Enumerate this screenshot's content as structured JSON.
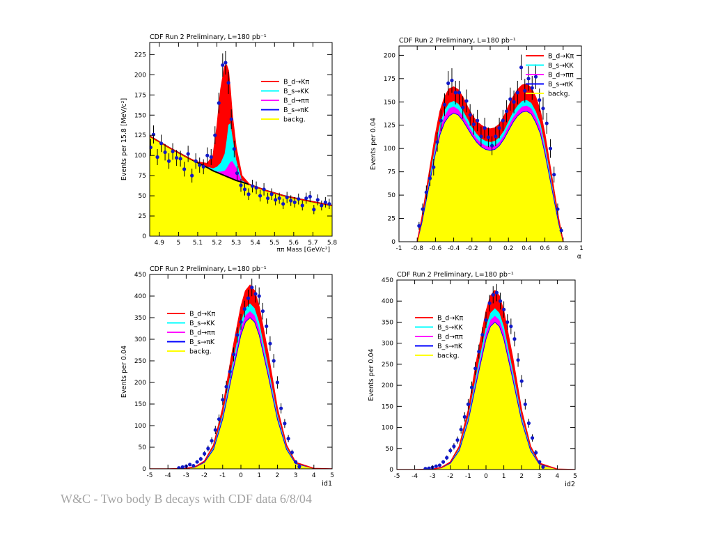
{
  "footer": "W&C - Two body B decays with CDF data 6/8/04",
  "colors": {
    "Bd_Kpi": "#ff0000",
    "Bs_KK": "#00ffff",
    "Bd_pipi": "#ff00ff",
    "Bs_piK": "#0000ff",
    "backg": "#ffff00",
    "points": "#1018c8",
    "frame": "#000000"
  },
  "legend_labels": [
    "B_d→Kπ",
    "B_s→KK",
    "B_d→ππ",
    "B_s→πK",
    "backg."
  ],
  "chart_data": [
    {
      "id": "mass",
      "type": "area",
      "title": "CDF Run 2 Preliminary, L=180 pb⁻¹",
      "xlabel": "ππ Mass [GeV/c²]",
      "ylabel": "Events per 15.8 [MeV/c²]",
      "xlim": [
        4.85,
        5.8
      ],
      "ylim": [
        0,
        240
      ],
      "xticks": [
        "4.9",
        "5",
        "5.1",
        "5.2",
        "5.3",
        "5.4",
        "5.5",
        "5.6",
        "5.7",
        "5.8"
      ],
      "yticks": [
        "0",
        "25",
        "50",
        "75",
        "100",
        "125",
        "150",
        "175",
        "200",
        "225"
      ],
      "legend_position": "top-right",
      "x": [
        4.85,
        4.95,
        5.05,
        5.1,
        5.15,
        5.18,
        5.2,
        5.22,
        5.24,
        5.25,
        5.26,
        5.27,
        5.28,
        5.3,
        5.33,
        5.37,
        5.45,
        5.55,
        5.65,
        5.8
      ],
      "series": [
        {
          "name": "backg.",
          "values": [
            124,
            110,
            97,
            91,
            85,
            81,
            79,
            77,
            75,
            74,
            73,
            72,
            71,
            69,
            67,
            64,
            57,
            50,
            45,
            38
          ]
        },
        {
          "name": "B_d→Kπ",
          "values": [
            124,
            110,
            97,
            92,
            90,
            100,
            135,
            182,
            210,
            212,
            205,
            180,
            150,
            110,
            75,
            64,
            57,
            50,
            45,
            38
          ]
        },
        {
          "name": "B_s→KK",
          "values": [
            124,
            110,
            97,
            91,
            86,
            84,
            86,
            91,
            102,
            118,
            138,
            140,
            125,
            95,
            69,
            64,
            57,
            50,
            45,
            38
          ]
        },
        {
          "name": "B_d→ππ",
          "values": [
            124,
            110,
            97,
            91,
            85,
            81,
            80,
            80,
            81,
            84,
            88,
            92,
            93,
            85,
            68,
            64,
            57,
            50,
            45,
            38
          ]
        }
      ],
      "points": {
        "x": [
          4.855,
          4.87,
          4.89,
          4.91,
          4.93,
          4.95,
          4.97,
          4.99,
          5.01,
          5.03,
          5.05,
          5.07,
          5.09,
          5.11,
          5.13,
          5.15,
          5.17,
          5.19,
          5.21,
          5.23,
          5.245,
          5.26,
          5.275,
          5.29,
          5.305,
          5.325,
          5.345,
          5.365,
          5.385,
          5.405,
          5.425,
          5.445,
          5.465,
          5.485,
          5.505,
          5.525,
          5.545,
          5.565,
          5.585,
          5.605,
          5.625,
          5.645,
          5.665,
          5.685,
          5.705,
          5.725,
          5.745,
          5.765,
          5.785
        ],
        "y": [
          110,
          126,
          98,
          115,
          104,
          93,
          105,
          97,
          96,
          83,
          102,
          75,
          93,
          88,
          86,
          100,
          98,
          125,
          165,
          212,
          215,
          190,
          145,
          108,
          78,
          63,
          58,
          52,
          62,
          60,
          50,
          58,
          47,
          52,
          45,
          47,
          40,
          48,
          44,
          42,
          46,
          38,
          47,
          49,
          33,
          45,
          38,
          42,
          40
        ]
      }
    },
    {
      "id": "alpha",
      "type": "area",
      "title": "CDF Run 2 Preliminary, L=180 pb⁻¹",
      "xlabel": "α",
      "ylabel": "Events per 0.04",
      "xlim": [
        -1,
        1
      ],
      "ylim": [
        0,
        210
      ],
      "xticks": [
        "-1",
        "-0.8",
        "-0.6",
        "-0.4",
        "-0.2",
        "0",
        "0.2",
        "0.4",
        "0.6",
        "0.8",
        "1"
      ],
      "yticks": [
        "0",
        "25",
        "50",
        "75",
        "100",
        "125",
        "150",
        "175",
        "200"
      ],
      "legend_position": "top-right",
      "x": [
        -0.8,
        -0.75,
        -0.7,
        -0.65,
        -0.6,
        -0.55,
        -0.5,
        -0.45,
        -0.4,
        -0.35,
        -0.3,
        -0.25,
        -0.2,
        -0.15,
        -0.1,
        -0.05,
        0,
        0.05,
        0.1,
        0.15,
        0.2,
        0.25,
        0.3,
        0.35,
        0.4,
        0.45,
        0.5,
        0.55,
        0.6,
        0.65,
        0.7,
        0.75,
        0.8
      ],
      "series": [
        {
          "name": "backg.",
          "values": [
            0,
            20,
            45,
            70,
            95,
            115,
            128,
            135,
            138,
            136,
            130,
            122,
            114,
            107,
            102,
            99,
            98,
            99,
            103,
            110,
            119,
            128,
            135,
            139,
            140,
            137,
            128,
            116,
            95,
            70,
            45,
            20,
            0
          ]
        },
        {
          "name": "B_d→Kπ",
          "values": [
            0,
            25,
            55,
            85,
            115,
            140,
            155,
            164,
            166,
            163,
            155,
            145,
            136,
            129,
            125,
            122,
            121,
            122,
            126,
            134,
            145,
            155,
            163,
            168,
            169,
            165,
            155,
            140,
            115,
            85,
            55,
            25,
            0
          ]
        },
        {
          "name": "B_s→KK",
          "values": [
            0,
            22,
            49,
            77,
            104,
            127,
            141,
            149,
            151,
            148,
            141,
            132,
            123,
            116,
            111,
            108,
            107,
            108,
            112,
            119,
            129,
            139,
            146,
            151,
            152,
            149,
            140,
            127,
            104,
            77,
            49,
            22,
            0
          ]
        },
        {
          "name": "B_d→ππ",
          "values": [
            0,
            21,
            47,
            73,
            99,
            121,
            135,
            143,
            145,
            142,
            135,
            127,
            118,
            111,
            106,
            103,
            102,
            103,
            107,
            114,
            124,
            133,
            140,
            145,
            146,
            143,
            134,
            122,
            99,
            73,
            47,
            21,
            0
          ]
        }
      ],
      "points": {
        "x": [
          -0.78,
          -0.74,
          -0.7,
          -0.66,
          -0.62,
          -0.58,
          -0.54,
          -0.5,
          -0.46,
          -0.42,
          -0.38,
          -0.34,
          -0.3,
          -0.26,
          -0.22,
          -0.18,
          -0.14,
          -0.1,
          -0.06,
          -0.02,
          0.02,
          0.06,
          0.1,
          0.14,
          0.18,
          0.22,
          0.26,
          0.3,
          0.34,
          0.38,
          0.42,
          0.46,
          0.5,
          0.54,
          0.58,
          0.62,
          0.66,
          0.7,
          0.74,
          0.78
        ],
        "y": [
          17,
          35,
          53,
          68,
          80,
          107,
          130,
          147,
          170,
          173,
          160,
          160,
          144,
          151,
          136,
          126,
          130,
          113,
          122,
          112,
          103,
          113,
          122,
          130,
          140,
          153,
          150,
          160,
          187,
          162,
          175,
          165,
          177,
          152,
          143,
          127,
          100,
          72,
          35,
          12
        ]
      }
    },
    {
      "id": "id1",
      "type": "area",
      "title": "CDF Run 2 Preliminary, L=180 pb⁻¹",
      "xlabel": "id1",
      "ylabel": "Events per 0.04",
      "xlim": [
        -5,
        5
      ],
      "ylim": [
        0,
        450
      ],
      "xticks": [
        "-5",
        "-4",
        "-3",
        "-2",
        "-1",
        "0",
        "1",
        "2",
        "3",
        "4",
        "5"
      ],
      "yticks": [
        "0",
        "50",
        "100",
        "150",
        "200",
        "250",
        "300",
        "350",
        "400",
        "450"
      ],
      "legend_position": "top-left",
      "x": [
        -5,
        -4,
        -3,
        -2.5,
        -2,
        -1.5,
        -1,
        -0.5,
        0,
        0.25,
        0.5,
        0.75,
        1,
        1.5,
        2,
        2.5,
        3,
        4,
        5
      ],
      "series": [
        {
          "name": "backg.",
          "values": [
            0,
            0,
            1,
            4,
            15,
            45,
            115,
            215,
            310,
            340,
            350,
            340,
            310,
            215,
            115,
            45,
            12,
            1,
            0
          ]
        },
        {
          "name": "B_d→Kπ",
          "values": [
            0,
            0,
            1,
            5,
            18,
            55,
            140,
            265,
            375,
            412,
            425,
            412,
            375,
            265,
            140,
            55,
            15,
            1,
            0
          ]
        },
        {
          "name": "B_s→KK",
          "values": [
            0,
            0,
            1,
            4,
            16,
            50,
            126,
            236,
            340,
            372,
            383,
            372,
            340,
            236,
            126,
            50,
            13,
            1,
            0
          ]
        },
        {
          "name": "B_d→ππ",
          "values": [
            0,
            0,
            1,
            4,
            15,
            47,
            120,
            224,
            324,
            355,
            365,
            355,
            324,
            224,
            120,
            47,
            12,
            1,
            0
          ]
        }
      ],
      "points": {
        "x": [
          -3.4,
          -3.2,
          -3,
          -2.8,
          -2.6,
          -2.4,
          -2.2,
          -2,
          -1.8,
          -1.6,
          -1.4,
          -1.2,
          -1,
          -0.8,
          -0.6,
          -0.4,
          -0.2,
          0,
          0.2,
          0.4,
          0.6,
          0.8,
          1,
          1.2,
          1.4,
          1.6,
          1.8,
          2,
          2.2,
          2.4,
          2.6,
          2.8,
          3,
          3.2
        ],
        "y": [
          2,
          4,
          6,
          10,
          7,
          16,
          23,
          35,
          47,
          65,
          90,
          115,
          160,
          190,
          225,
          265,
          310,
          340,
          370,
          395,
          420,
          405,
          400,
          365,
          330,
          290,
          250,
          200,
          140,
          105,
          70,
          38,
          16,
          5
        ]
      }
    },
    {
      "id": "id2",
      "type": "area",
      "title": "CDF Run 2 Preliminary, L=180 pb⁻¹",
      "xlabel": "id2",
      "ylabel": "Events per 0.04",
      "xlim": [
        -5,
        5
      ],
      "ylim": [
        0,
        450
      ],
      "xticks": [
        "-5",
        "-4",
        "-3",
        "-2",
        "-1",
        "0",
        "1",
        "2",
        "3",
        "4",
        "5"
      ],
      "yticks": [
        "0",
        "50",
        "100",
        "150",
        "200",
        "250",
        "300",
        "350",
        "400",
        "450"
      ],
      "legend_position": "top-left",
      "x": [
        -5,
        -4,
        -3,
        -2.5,
        -2,
        -1.5,
        -1,
        -0.5,
        0,
        0.25,
        0.5,
        0.75,
        1,
        1.5,
        2,
        2.5,
        3,
        4,
        5
      ],
      "series": [
        {
          "name": "backg.",
          "values": [
            0,
            0,
            1,
            4,
            15,
            45,
            115,
            215,
            310,
            340,
            350,
            340,
            310,
            215,
            115,
            45,
            12,
            1,
            0
          ]
        },
        {
          "name": "B_d→Kπ",
          "values": [
            0,
            0,
            1,
            5,
            18,
            55,
            140,
            265,
            375,
            412,
            425,
            412,
            375,
            265,
            140,
            55,
            15,
            1,
            0
          ]
        },
        {
          "name": "B_s→KK",
          "values": [
            0,
            0,
            1,
            4,
            16,
            50,
            126,
            236,
            340,
            372,
            383,
            372,
            340,
            236,
            126,
            50,
            13,
            1,
            0
          ]
        },
        {
          "name": "B_d→ππ",
          "values": [
            0,
            0,
            1,
            4,
            15,
            47,
            120,
            224,
            324,
            355,
            365,
            355,
            324,
            224,
            120,
            47,
            12,
            1,
            0
          ]
        }
      ],
      "points": {
        "x": [
          -3.4,
          -3.2,
          -3,
          -2.8,
          -2.6,
          -2.4,
          -2.2,
          -2,
          -1.8,
          -1.6,
          -1.4,
          -1.2,
          -1,
          -0.8,
          -0.6,
          -0.4,
          -0.2,
          0,
          0.2,
          0.4,
          0.6,
          0.8,
          1,
          1.2,
          1.4,
          1.6,
          1.8,
          2,
          2.2,
          2.4,
          2.6,
          2.8,
          3,
          3.2
        ],
        "y": [
          2,
          3,
          5,
          8,
          10,
          18,
          28,
          45,
          55,
          70,
          95,
          125,
          155,
          195,
          240,
          280,
          320,
          355,
          395,
          415,
          420,
          400,
          380,
          350,
          340,
          310,
          260,
          210,
          155,
          110,
          75,
          40,
          18,
          6
        ]
      }
    }
  ]
}
